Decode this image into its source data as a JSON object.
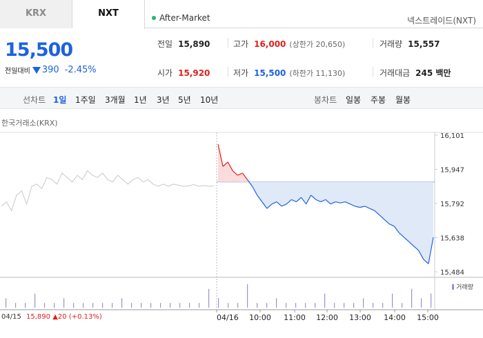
{
  "tabs": {
    "krx": "KRX",
    "nxt": "NXT"
  },
  "session": "After-Market",
  "provider": "넥스트레이드(NXT)",
  "price": {
    "current": "15,500",
    "change_label": "전일대비",
    "change": "390",
    "change_pct": "-2.45%"
  },
  "stats": {
    "prev_close": {
      "label": "전일",
      "value": "15,890"
    },
    "high": {
      "label": "고가",
      "value": "16,000",
      "sub": "(상한가 20,650)"
    },
    "volume": {
      "label": "거래량",
      "value": "15,557"
    },
    "open": {
      "label": "시가",
      "value": "15,920"
    },
    "low": {
      "label": "저가",
      "value": "15,500",
      "sub": "(하한가 11,130)"
    },
    "amount": {
      "label": "거래대금",
      "value": "245 백만"
    }
  },
  "period_bar": {
    "line_label": "선차트",
    "line_items": [
      "1일",
      "1주일",
      "3개월",
      "1년",
      "3년",
      "5년",
      "10년"
    ],
    "active": "1일",
    "candle_label": "봉차트",
    "candle_items": [
      "일봉",
      "주봉",
      "월봉"
    ]
  },
  "exchange_label": "한국거래소(KRX)",
  "chart_data": {
    "type": "line",
    "y_ticks": [
      "16,101",
      "15,947",
      "15,792",
      "15,638",
      "15,484"
    ],
    "ylim": [
      15484,
      16101
    ],
    "baseline": 15890,
    "x_ticks": [
      "04/16",
      "10:00",
      "11:00",
      "12:00",
      "13:00",
      "14:00",
      "15:00"
    ],
    "prev_day_label": "04/15",
    "prev_day_series": [
      15780,
      15800,
      15760,
      15830,
      15850,
      15790,
      15870,
      15880,
      15860,
      15910,
      15900,
      15880,
      15930,
      15910,
      15890,
      15920,
      15900,
      15940,
      15920,
      15910,
      15930,
      15900,
      15890,
      15920,
      15900,
      15880,
      15900,
      15910,
      15890,
      15900,
      15880,
      15870,
      15880,
      15870,
      15880,
      15875,
      15870,
      15872,
      15878,
      15870,
      15874,
      15870,
      15872
    ],
    "today_series": [
      16060,
      15960,
      15980,
      15940,
      15920,
      15930,
      15900,
      15870,
      15830,
      15800,
      15770,
      15790,
      15800,
      15780,
      15790,
      15810,
      15800,
      15820,
      15790,
      15830,
      15810,
      15800,
      15810,
      15790,
      15800,
      15795,
      15800,
      15790,
      15780,
      15775,
      15780,
      15770,
      15760,
      15740,
      15720,
      15700,
      15690,
      15660,
      15640,
      15620,
      15600,
      15580,
      15540,
      15520,
      15640
    ],
    "volume_series": [
      2,
      1,
      1,
      3,
      1,
      1,
      2,
      1,
      1,
      1,
      1,
      1,
      2,
      1,
      1,
      1,
      1,
      1,
      1,
      1,
      1,
      4,
      2,
      1,
      1,
      5,
      1,
      1,
      2,
      1,
      1,
      1,
      1,
      3,
      1,
      1,
      1,
      2,
      1,
      1,
      3,
      1,
      4,
      2,
      3
    ],
    "prev_info": {
      "date": "04/15",
      "close": "15,890",
      "change": "▲20",
      "pct": "(+0.13%)"
    },
    "volume_label": "거래량",
    "colors": {
      "up": "#e0201c",
      "down": "#1d62e0",
      "prev": "#c8c8c8",
      "fill_down": "#dfe9f8",
      "fill_up": "#fadcdc",
      "volume": "#9d8fd0"
    }
  }
}
